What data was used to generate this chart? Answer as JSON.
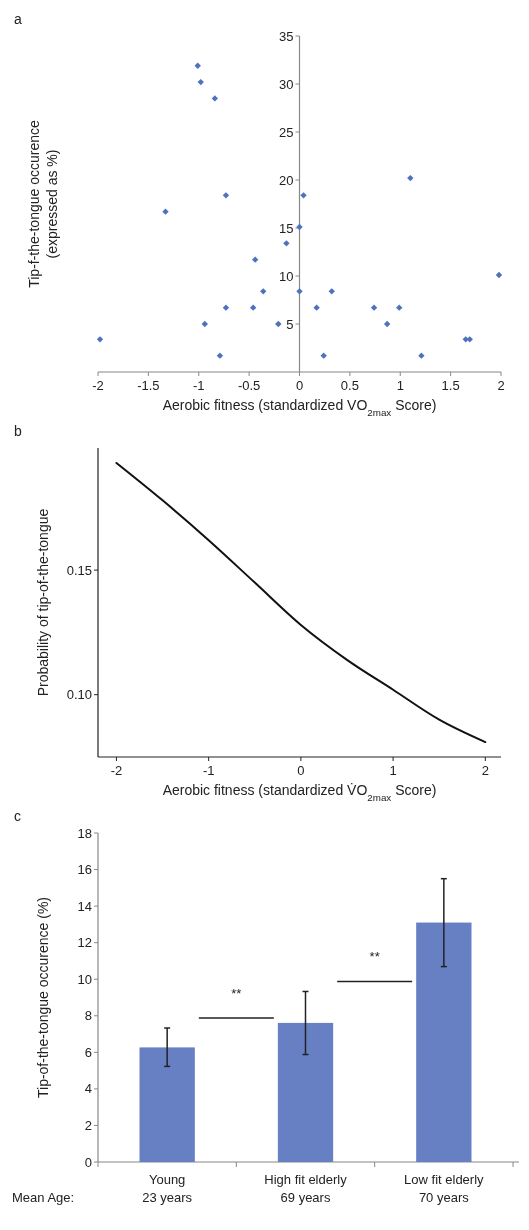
{
  "chart_data": [
    {
      "type": "scatter",
      "title": "a",
      "xlabel": "Aerobic fitness (standardized VO$_{2max}$ Score)",
      "ylabel": "Tip-f-the-tongue occurence\n(expressed as %)",
      "marker": "diamond",
      "color": "#4f72be",
      "x": [
        -1.98,
        -1.33,
        -1.01,
        -0.98,
        -0.84,
        -0.94,
        -0.79,
        -0.73,
        -0.73,
        -0.46,
        -0.44,
        -0.36,
        -0.21,
        -0.13,
        0.0,
        0.0,
        0.04,
        0.17,
        0.24,
        0.32,
        0.74,
        0.87,
        0.99,
        1.1,
        1.21,
        1.65,
        1.69,
        1.98
      ],
      "values": [
        3.4,
        16.7,
        31.9,
        30.2,
        28.5,
        5.0,
        1.7,
        18.4,
        6.7,
        6.7,
        11.7,
        8.4,
        5.0,
        13.4,
        15.1,
        8.4,
        18.4,
        6.7,
        1.7,
        8.4,
        6.7,
        5.0,
        6.7,
        20.2,
        1.7,
        3.4,
        3.4,
        10.1
      ],
      "xlim": [
        -2,
        2
      ],
      "ylim": [
        0,
        35
      ],
      "xticks": [
        -2,
        -1.5,
        -1,
        -0.5,
        0,
        0.5,
        1,
        1.5,
        2
      ],
      "yticks": [
        5,
        10,
        15,
        20,
        25,
        30,
        35
      ]
    },
    {
      "type": "line",
      "title": "b",
      "xlabel": "Aerobic fitness (standardized V̇O$_{2max}$ Score)",
      "ylabel": "Probability of tip-of-the-tongue",
      "color": "#111111",
      "x": [
        -2,
        -1.5,
        -1,
        -0.5,
        0,
        0.5,
        1,
        1.5,
        2
      ],
      "values": [
        0.193,
        0.178,
        0.162,
        0.145,
        0.128,
        0.114,
        0.102,
        0.09,
        0.081
      ],
      "xlim": [
        -2.2,
        2.17
      ],
      "ylim": [
        0.075,
        0.199
      ],
      "xticks": [
        -2,
        -1,
        0,
        1,
        2
      ],
      "yticks": [
        {
          "value": 0.15,
          "label": "0.15"
        },
        {
          "value": 0.1,
          "label": "0.10"
        }
      ]
    },
    {
      "type": "bar",
      "title": "c",
      "ylabel": "Tip-of-the-tongue occurence (%)",
      "color": "#6780c4",
      "categories": [
        "Young\n23 years",
        "High fit elderly\n69 years",
        "Low fit elderly\n70 years"
      ],
      "values": [
        6.27,
        7.61,
        13.1
      ],
      "errors": [
        [
          5.23,
          7.33
        ],
        [
          5.88,
          9.33
        ],
        [
          10.69,
          15.5
        ]
      ],
      "ylim": [
        0,
        18
      ],
      "yticks": [
        0,
        2,
        4,
        6,
        8,
        10,
        12,
        14,
        16,
        18
      ],
      "annotations": [
        "**",
        "**",
        "Mean Age:"
      ]
    }
  ]
}
